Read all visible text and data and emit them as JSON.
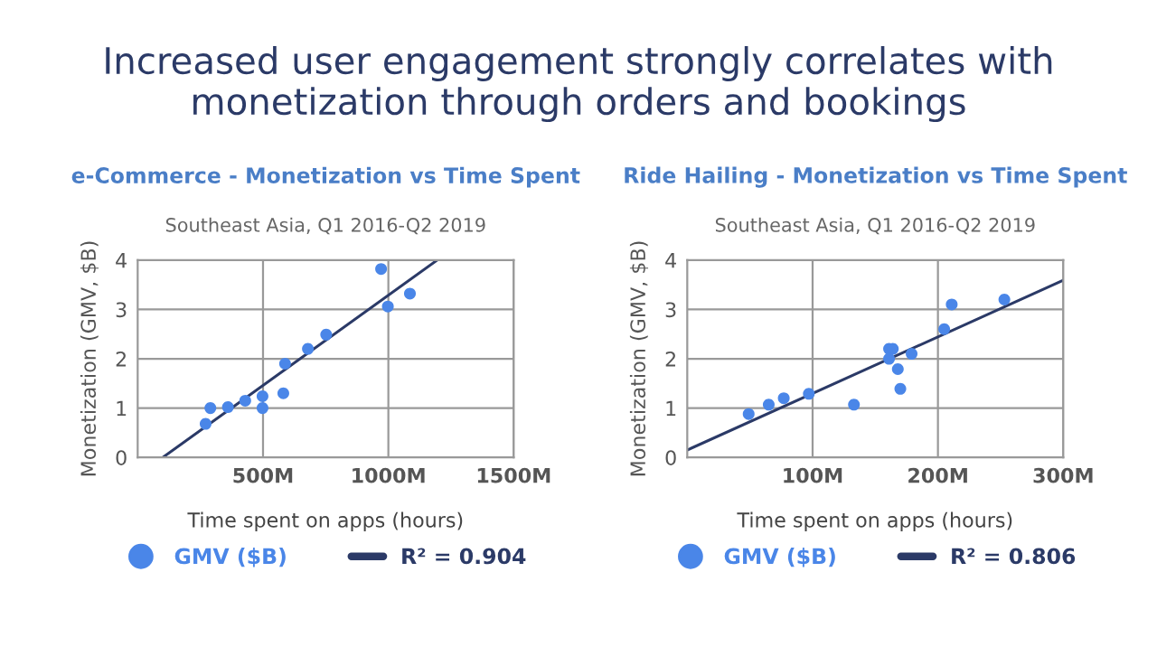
{
  "chart_data": [
    {
      "type": "scatter",
      "title": "e-Commerce - Monetization vs Time Spent",
      "subtitle": "Southeast Asia, Q1 2016-Q2 2019",
      "xlabel": "Time spent on apps (hours)",
      "ylabel": "Monetization (GMV, $B)",
      "annotations": [
        "Increased user engagement strongly correlates with monetization through orders and bookings"
      ],
      "series": [
        {
          "name": "GMV ($B)",
          "marker": "circle",
          "color": "#4a86e8",
          "x": [
            271,
            290,
            360,
            429,
            498,
            498,
            581,
            588,
            679,
            752,
            971,
            998,
            1086
          ],
          "values": [
            0.68,
            1.0,
            1.02,
            1.15,
            1.24,
            1.0,
            1.3,
            1.9,
            2.2,
            2.49,
            3.82,
            3.06,
            3.32
          ]
        },
        {
          "name": "R² = 0.904",
          "type": "line",
          "color": "#2b3a67",
          "x": [
            100,
            1195
          ],
          "values": [
            0,
            4
          ]
        }
      ],
      "xlim": [
        0,
        1500
      ],
      "ylim": [
        0,
        4
      ],
      "xticks": [
        {
          "value": 500,
          "label": "500M"
        },
        {
          "value": 1000,
          "label": "1000M"
        },
        {
          "value": 1500,
          "label": "1500M"
        }
      ],
      "yticks": [
        0,
        1,
        2,
        3,
        4
      ],
      "grid": true,
      "legend": "bottom"
    },
    {
      "type": "scatter",
      "title": "Ride Hailing - Monetization vs Time Spent",
      "subtitle": "Southeast Asia, Q1 2016-Q2 2019",
      "xlabel": "Time spent on apps (hours)",
      "ylabel": "Monetization (GMV, $B)",
      "series": [
        {
          "name": "GMV ($B)",
          "marker": "circle",
          "color": "#4a86e8",
          "x": [
            49,
            65,
            77,
            97,
            133,
            161,
            164,
            161,
            168,
            170,
            179,
            205,
            211,
            253
          ],
          "values": [
            0.88,
            1.07,
            1.2,
            1.29,
            1.07,
            2.2,
            2.2,
            2.0,
            1.79,
            1.39,
            2.1,
            2.6,
            3.1,
            3.2
          ]
        },
        {
          "name": "R² = 0.806",
          "type": "line",
          "color": "#2b3a67",
          "x": [
            0,
            300
          ],
          "values": [
            0.15,
            3.59
          ]
        }
      ],
      "xlim": [
        0,
        300
      ],
      "ylim": [
        0,
        4
      ],
      "xticks": [
        {
          "value": 100,
          "label": "100M"
        },
        {
          "value": 200,
          "label": "200M"
        },
        {
          "value": 300,
          "label": "300M"
        }
      ],
      "yticks": [
        0,
        1,
        2,
        3,
        4
      ],
      "grid": true,
      "legend": "bottom"
    }
  ]
}
